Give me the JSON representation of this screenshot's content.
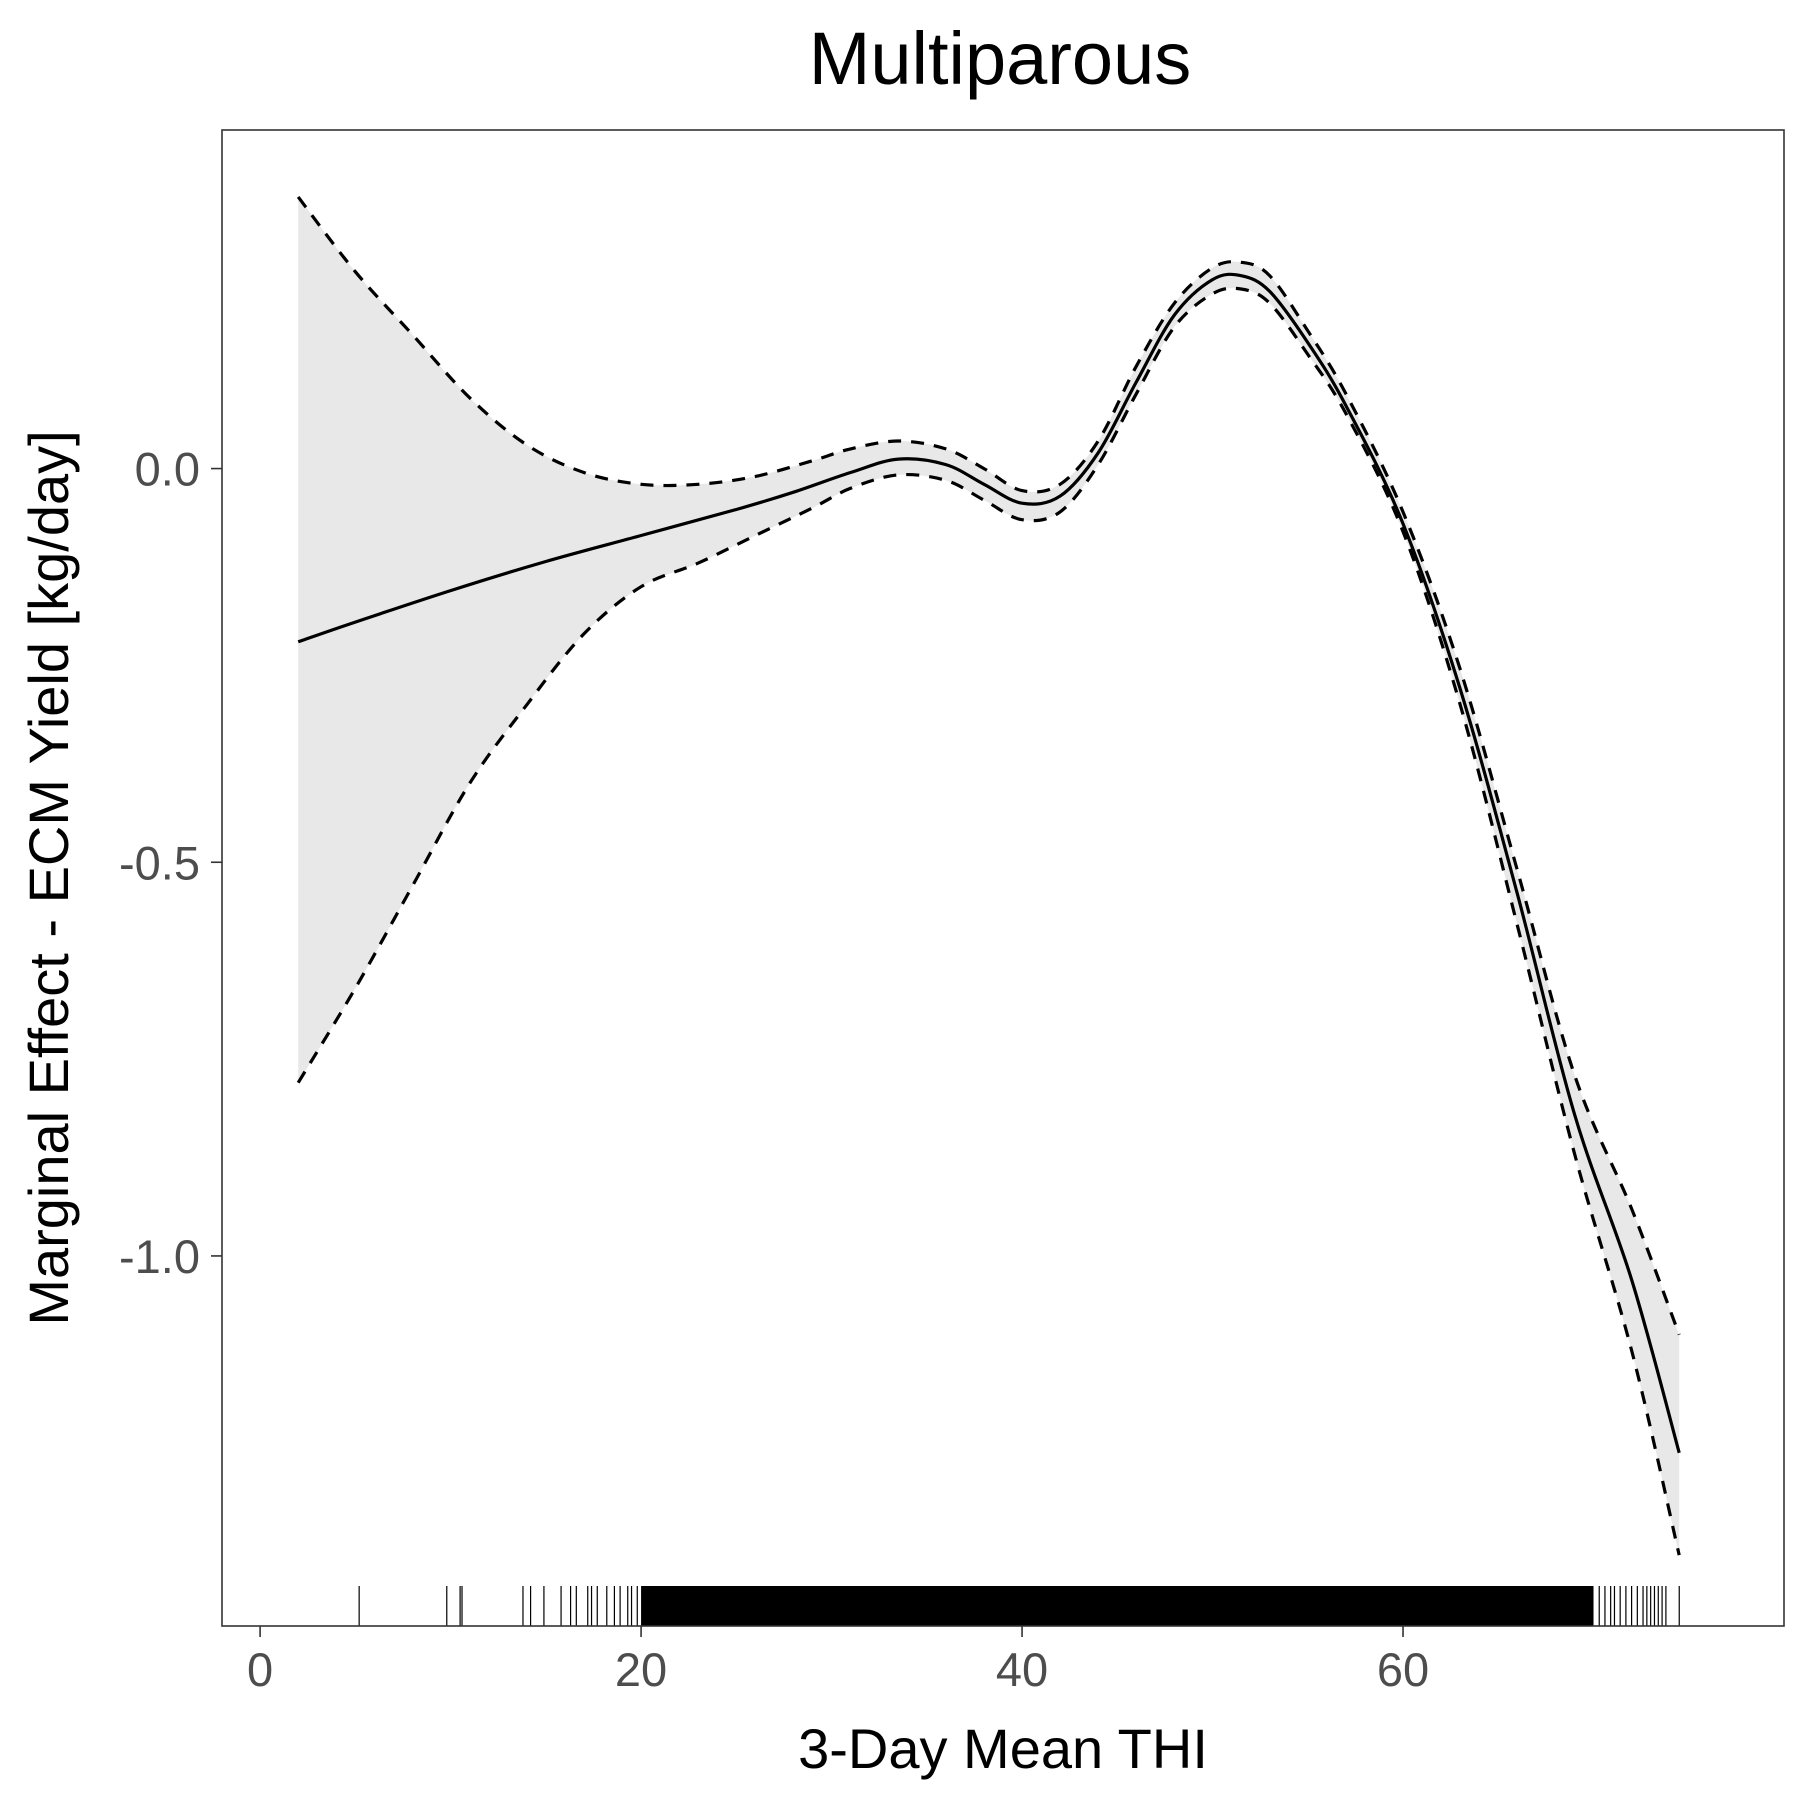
{
  "chart_data": {
    "type": "line",
    "title": "Multiparous",
    "xlabel": "3-Day Mean THI",
    "ylabel": "Marginal Effect - ECM Yield [kg/day]",
    "xlim": [
      -2,
      80
    ],
    "ylim": [
      -1.47,
      0.43
    ],
    "x_ticks": [
      0,
      20,
      40,
      60
    ],
    "x_tick_labels": [
      "0",
      "20",
      "40",
      "60"
    ],
    "y_ticks": [
      0.0,
      -0.5,
      -1.0
    ],
    "y_tick_labels": [
      "0.0",
      "-0.5",
      "-1.0"
    ],
    "grid": false,
    "legend": "none",
    "band_color": "#e8e8e8",
    "line_color": "#000000",
    "series": [
      {
        "role": "estimate",
        "style": "solid",
        "x": [
          2,
          5,
          10,
          15,
          20,
          25,
          28,
          31,
          33.5,
          36,
          38,
          40,
          42,
          44,
          46,
          48,
          50,
          51.5,
          53,
          55,
          57,
          60,
          63,
          66,
          69,
          72,
          74.5
        ],
        "y": [
          -0.22,
          -0.195,
          -0.155,
          -0.118,
          -0.085,
          -0.052,
          -0.03,
          -0.005,
          0.012,
          0.005,
          -0.02,
          -0.044,
          -0.035,
          0.02,
          0.11,
          0.195,
          0.24,
          0.245,
          0.225,
          0.16,
          0.08,
          -0.07,
          -0.28,
          -0.54,
          -0.82,
          -1.03,
          -1.25
        ]
      },
      {
        "role": "upper",
        "style": "dashed",
        "x": [
          2,
          5,
          8,
          11,
          14,
          17,
          20,
          23,
          26,
          29,
          31,
          33.5,
          36,
          38,
          40,
          42,
          44,
          46,
          48,
          50,
          51.5,
          53,
          55,
          57,
          60,
          63,
          66,
          69,
          72,
          74.5
        ],
        "y": [
          0.345,
          0.25,
          0.17,
          0.09,
          0.03,
          -0.005,
          -0.02,
          -0.02,
          -0.01,
          0.01,
          0.025,
          0.035,
          0.025,
          0.0,
          -0.028,
          -0.02,
          0.035,
          0.13,
          0.21,
          0.255,
          0.262,
          0.245,
          0.175,
          0.095,
          -0.055,
          -0.255,
          -0.51,
          -0.77,
          -0.94,
          -1.1
        ]
      },
      {
        "role": "lower",
        "style": "dashed",
        "x": [
          2,
          5,
          8,
          11,
          14,
          17,
          20,
          23,
          26,
          29,
          31,
          33.5,
          36,
          38,
          40,
          42,
          44,
          46,
          48,
          50,
          51.5,
          53,
          55,
          57,
          60,
          63,
          66,
          69,
          72,
          74.5
        ],
        "y": [
          -0.78,
          -0.66,
          -0.53,
          -0.4,
          -0.3,
          -0.21,
          -0.15,
          -0.12,
          -0.085,
          -0.05,
          -0.025,
          -0.008,
          -0.015,
          -0.04,
          -0.065,
          -0.055,
          0.005,
          0.095,
          0.18,
          0.222,
          0.228,
          0.21,
          0.145,
          0.07,
          -0.08,
          -0.3,
          -0.58,
          -0.87,
          -1.12,
          -1.38
        ]
      }
    ],
    "rug": {
      "sparse_x": [
        5.2,
        9.8,
        10.5,
        10.6,
        13.8,
        14.2,
        14.9,
        15.8,
        16.3,
        16.6,
        17.2,
        17.4,
        17.7,
        18.2,
        18.6,
        18.9,
        19.3,
        19.5,
        19.8
      ],
      "dense_from": 20,
      "dense_to": 70,
      "upper_sparse_x": [
        70.3,
        70.6,
        70.9,
        71.1,
        71.4,
        71.7,
        72.0,
        72.3,
        72.6,
        72.8,
        73.0,
        73.2,
        73.4,
        73.6,
        73.8,
        74.5
      ]
    }
  }
}
